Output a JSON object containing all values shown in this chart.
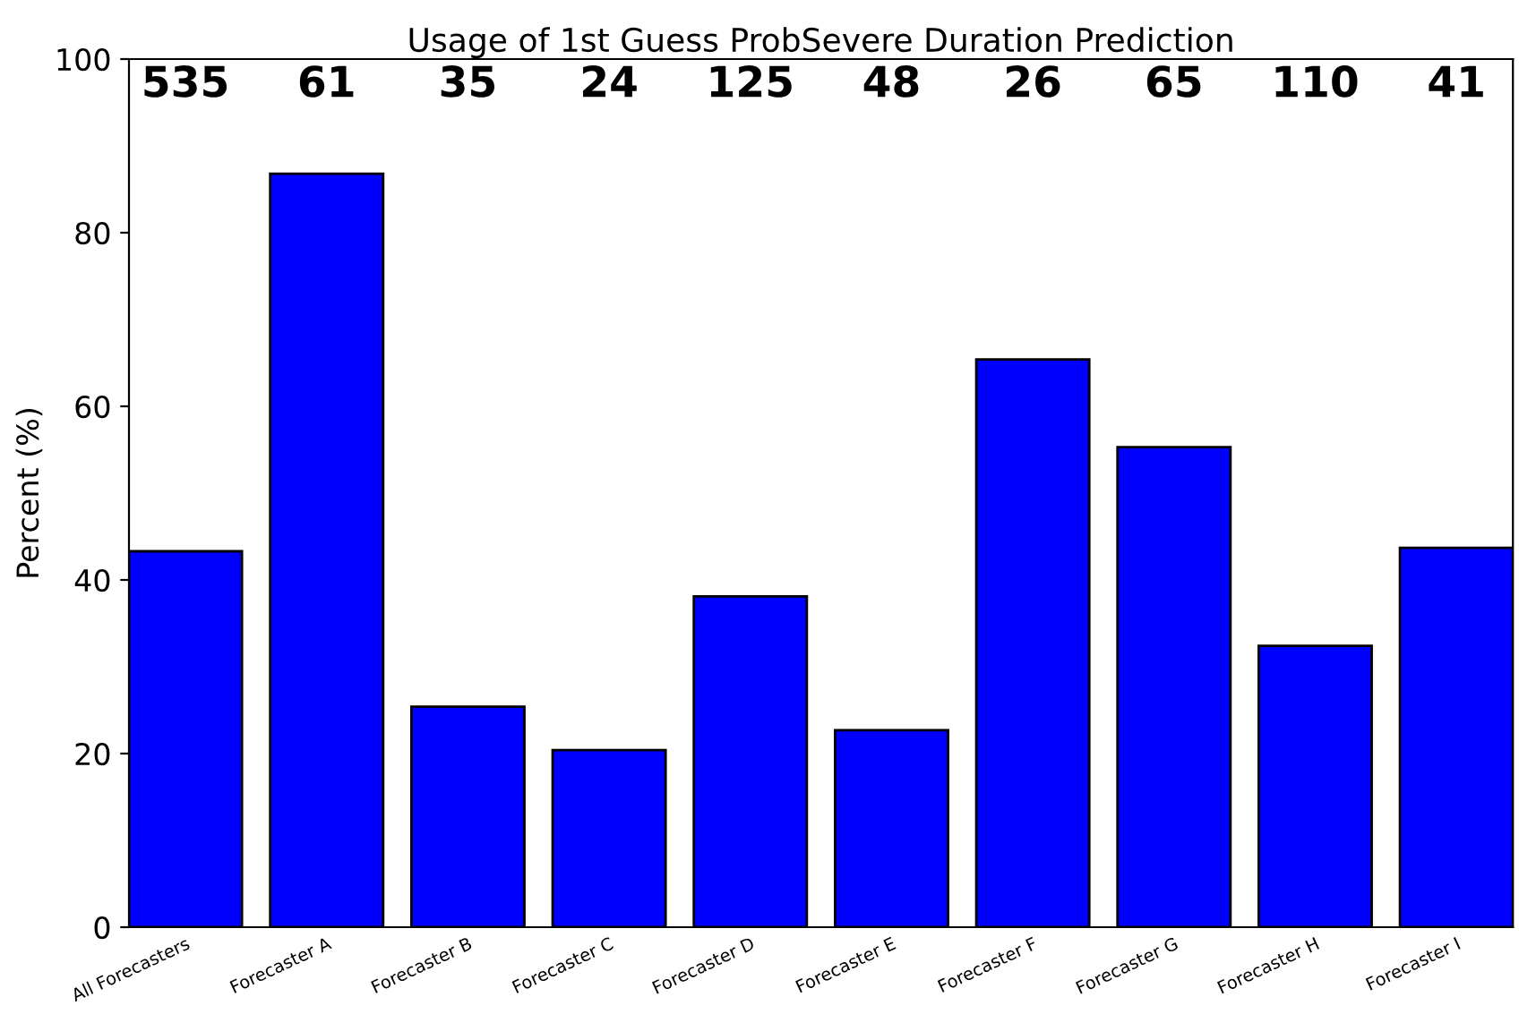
{
  "chart_data": {
    "type": "bar",
    "title": "Usage of 1st Guess ProbSevere Duration Prediction",
    "ylabel": "Percent (%)",
    "categories": [
      "All Forecasters",
      "Forecaster A",
      "Forecaster B",
      "Forecaster C",
      "Forecaster D",
      "Forecaster E",
      "Forecaster F",
      "Forecaster G",
      "Forecaster H",
      "Forecaster I"
    ],
    "values": [
      43.3,
      86.8,
      25.4,
      20.4,
      38.1,
      22.7,
      65.4,
      55.3,
      32.4,
      43.7
    ],
    "color": "#0000ff",
    "ylim": [
      0,
      100
    ],
    "yticks": [
      0,
      20,
      40,
      60,
      80,
      100
    ],
    "grid": false,
    "annotations": [
      "535",
      "61",
      "35",
      "24",
      "125",
      "48",
      "26",
      "65",
      "110",
      "41"
    ]
  }
}
